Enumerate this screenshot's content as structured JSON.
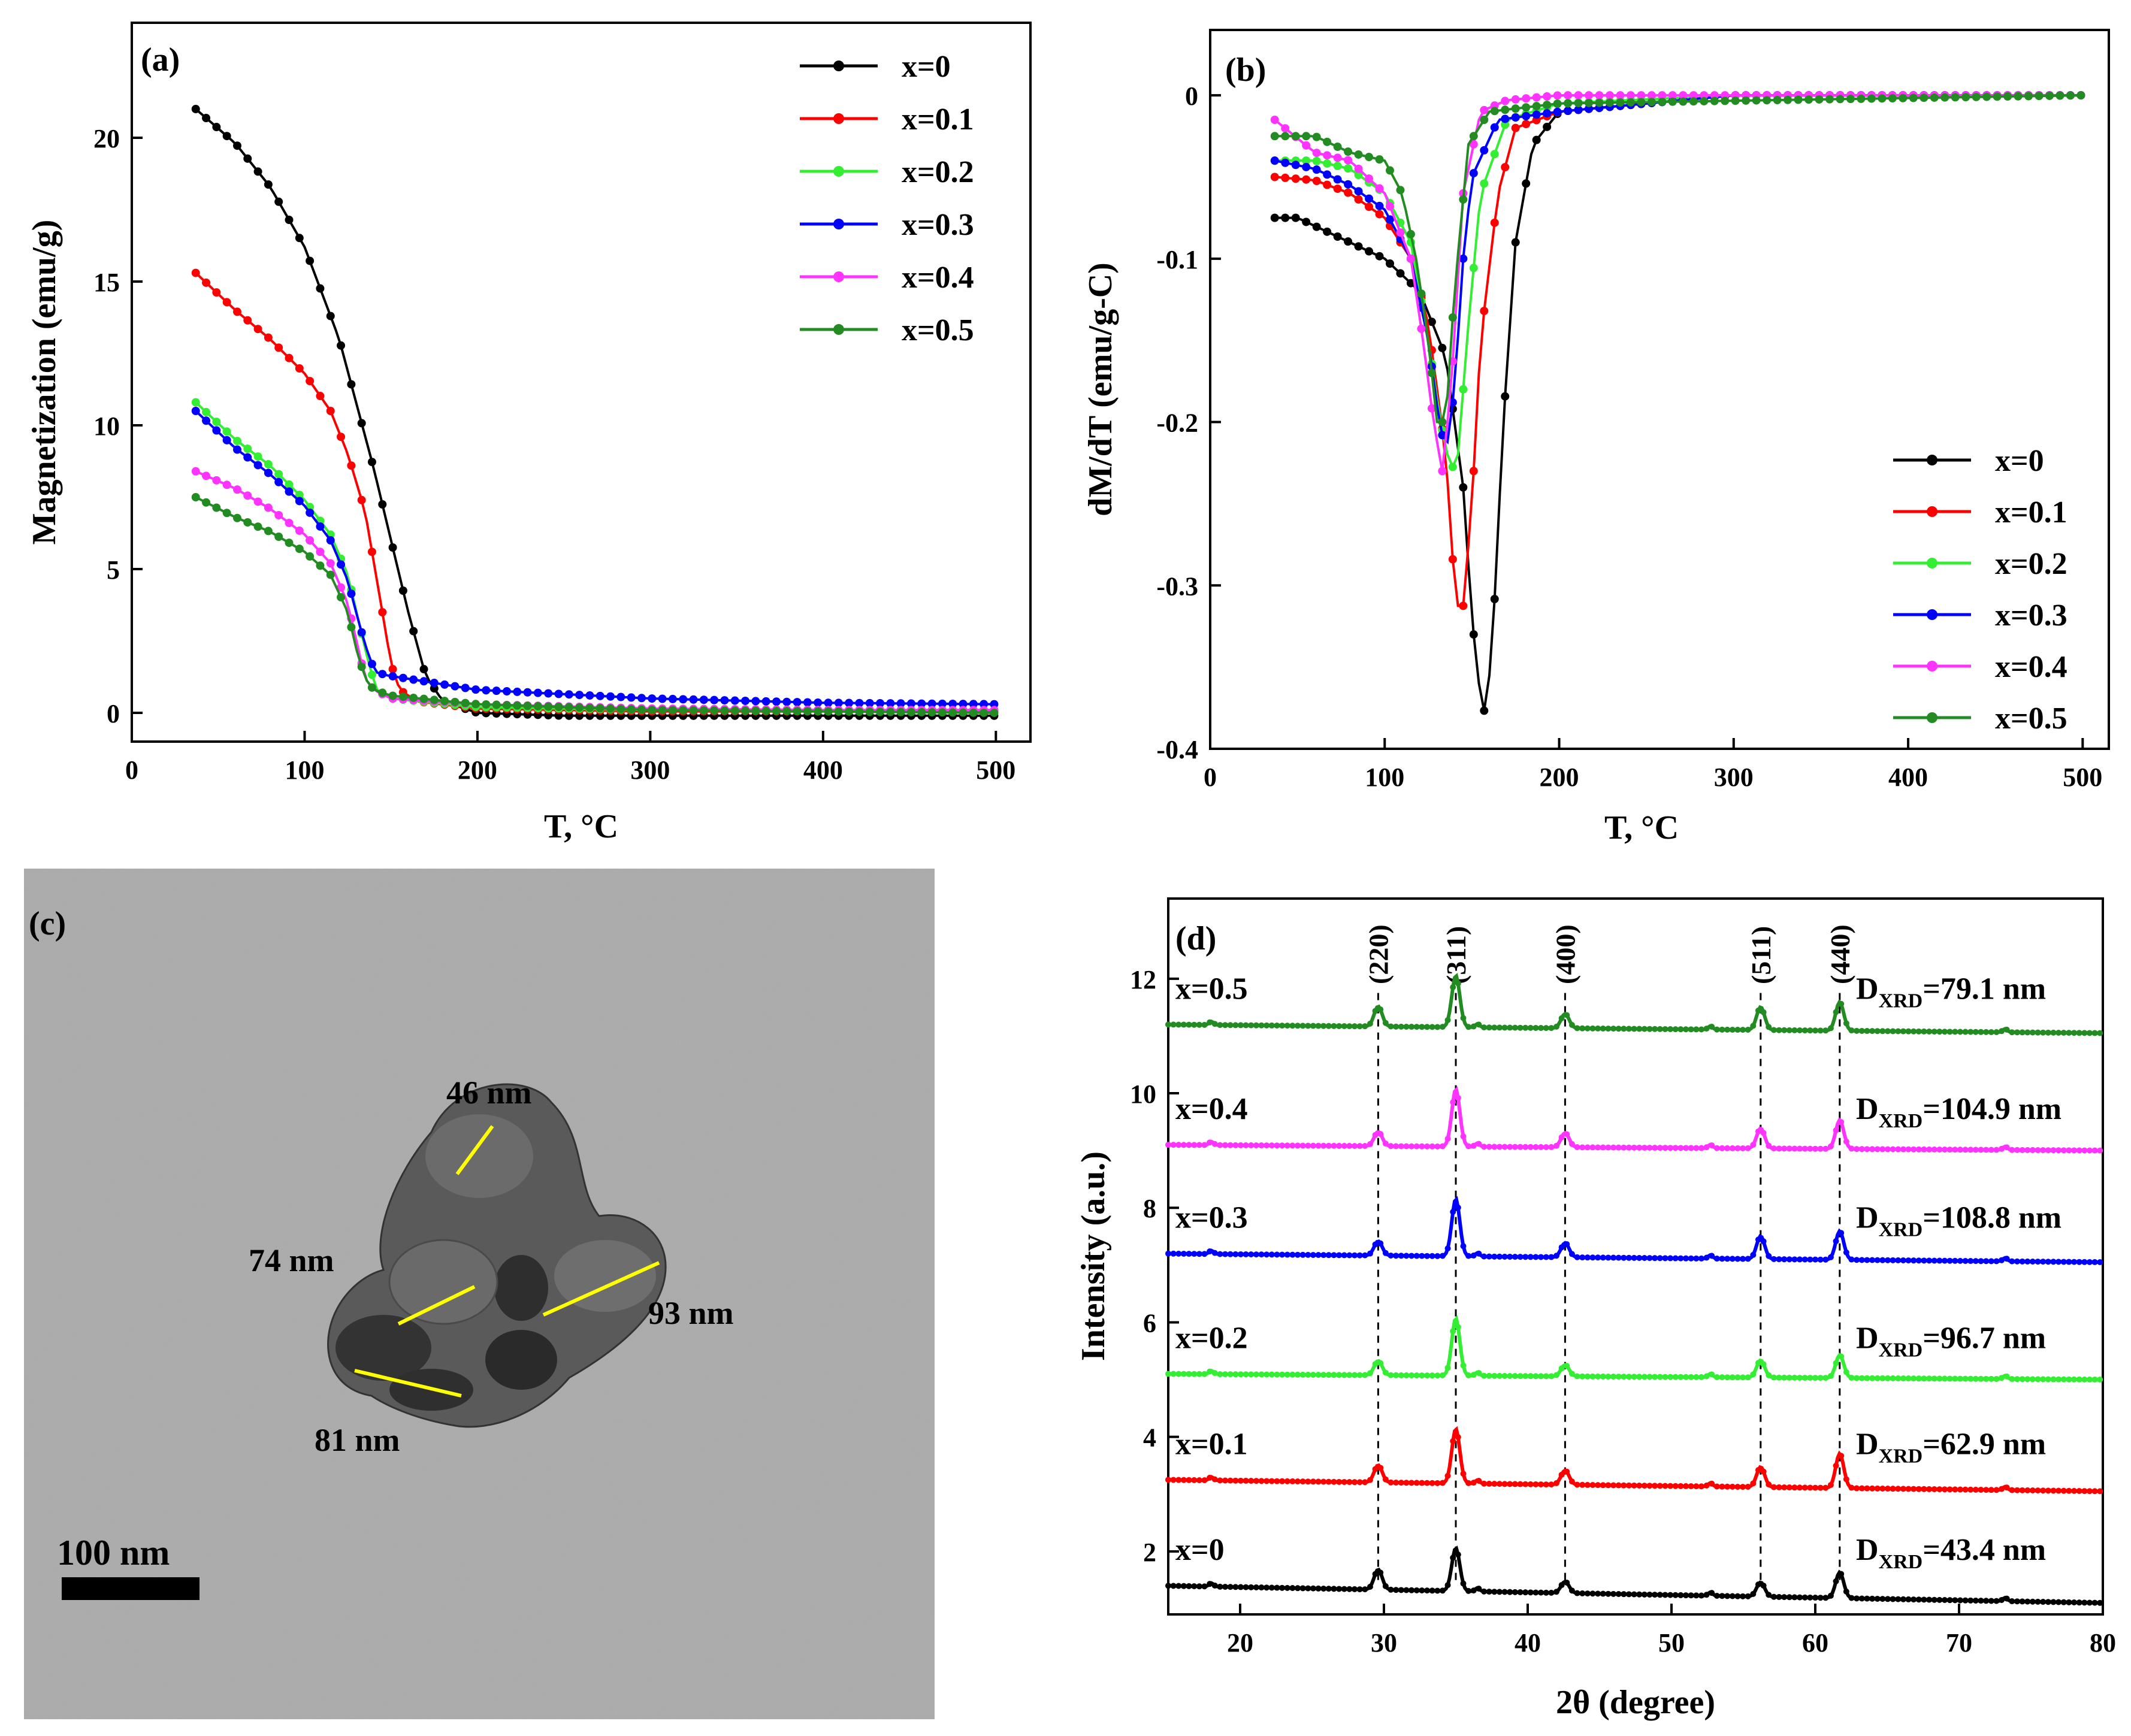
{
  "panels": {
    "a": {
      "label": "(a)"
    },
    "b": {
      "label": "(b)"
    },
    "c": {
      "label": "(c)"
    },
    "d": {
      "label": "(d)"
    }
  },
  "colors": {
    "x0": "#000000",
    "x01": "#ff0000",
    "x02": "#33ee33",
    "x03": "#0000ff",
    "x04": "#ff33ff",
    "x05": "#228b22",
    "tem_bg": "#a7a7a7",
    "tem_particle": "#3a3a3a",
    "size_line": "#ffff00"
  },
  "chart_data": [
    {
      "id": "a",
      "type": "line",
      "title": "",
      "xlabel": "T, °C",
      "ylabel": "Magnetization (emu/g)",
      "xlim": [
        0,
        520
      ],
      "ylim": [
        -1,
        24
      ],
      "xticks": [
        0,
        100,
        200,
        300,
        400,
        500
      ],
      "yticks": [
        0,
        5,
        10,
        15,
        20
      ],
      "legend": "top-right",
      "series": [
        {
          "name": "x=0",
          "color": "#000000",
          "x": [
            37,
            60,
            80,
            100,
            120,
            140,
            150,
            160,
            170,
            180,
            200,
            250,
            300,
            400,
            500
          ],
          "y": [
            21,
            19.8,
            18.3,
            16.2,
            13,
            8.5,
            6,
            3.5,
            1.3,
            0.4,
            0.0,
            -0.1,
            -0.1,
            -0.1,
            -0.1
          ]
        },
        {
          "name": "x=0.1",
          "color": "#ff0000",
          "x": [
            37,
            60,
            80,
            100,
            115,
            125,
            135,
            145,
            150,
            155,
            165,
            200,
            300,
            400,
            500
          ],
          "y": [
            15.3,
            14,
            13,
            11.8,
            10.5,
            9,
            7,
            3.5,
            1.7,
            0.8,
            0.4,
            0.15,
            0.05,
            0.05,
            0.05
          ]
        },
        {
          "name": "x=0.2",
          "color": "#33ee33",
          "x": [
            37,
            60,
            80,
            100,
            115,
            125,
            132,
            138,
            142,
            150,
            200,
            300,
            400,
            500
          ],
          "y": [
            10.8,
            9.5,
            8.6,
            7.4,
            6.2,
            4.8,
            3,
            1.5,
            0.8,
            0.5,
            0.2,
            0.1,
            0.1,
            0.1
          ]
        },
        {
          "name": "x=0.3",
          "color": "#0000ff",
          "x": [
            37,
            60,
            80,
            100,
            115,
            125,
            132,
            138,
            142,
            148,
            200,
            300,
            400,
            500
          ],
          "y": [
            10.5,
            9.2,
            8.3,
            7.2,
            6,
            4.6,
            3,
            1.8,
            1.4,
            1.3,
            0.8,
            0.5,
            0.35,
            0.3
          ]
        },
        {
          "name": "x=0.4",
          "color": "#ff33ff",
          "x": [
            37,
            60,
            80,
            100,
            115,
            125,
            130,
            135,
            140,
            150,
            200,
            300,
            400,
            500
          ],
          "y": [
            8.4,
            7.8,
            7.1,
            6.2,
            5.2,
            3.8,
            2.5,
            1.2,
            0.8,
            0.5,
            0.3,
            0.15,
            0.1,
            0.1
          ]
        },
        {
          "name": "x=0.5",
          "color": "#228b22",
          "x": [
            37,
            60,
            80,
            100,
            115,
            125,
            130,
            135,
            140,
            150,
            200,
            300,
            400,
            500
          ],
          "y": [
            7.5,
            6.8,
            6.3,
            5.6,
            4.8,
            3.5,
            2.2,
            1.2,
            0.8,
            0.6,
            0.3,
            0.1,
            0.05,
            0.0
          ]
        }
      ]
    },
    {
      "id": "b",
      "type": "line",
      "title": "",
      "xlabel": "T, °C",
      "ylabel": "dM/dT (emu/g-C)",
      "xlim": [
        0,
        515
      ],
      "ylim": [
        -0.4,
        0.04
      ],
      "xticks": [
        0,
        100,
        200,
        300,
        400,
        500
      ],
      "yticks": [
        0,
        -0.1,
        -0.2,
        -0.3,
        -0.4
      ],
      "legend": "bottom-right",
      "series": [
        {
          "name": "x=0",
          "color": "#000000",
          "x": [
            37,
            50,
            60,
            80,
            100,
            120,
            135,
            145,
            150,
            155,
            158,
            162,
            168,
            175,
            185,
            200,
            300,
            400,
            500
          ],
          "y": [
            -0.075,
            -0.075,
            -0.08,
            -0.09,
            -0.1,
            -0.12,
            -0.16,
            -0.24,
            -0.32,
            -0.37,
            -0.38,
            -0.33,
            -0.2,
            -0.09,
            -0.03,
            -0.01,
            0,
            0,
            0
          ]
        },
        {
          "name": "x=0.1",
          "color": "#ff0000",
          "x": [
            37,
            60,
            80,
            100,
            115,
            125,
            135,
            140,
            144,
            150,
            155,
            165,
            175,
            200,
            250,
            300,
            500
          ],
          "y": [
            -0.05,
            -0.052,
            -0.06,
            -0.075,
            -0.1,
            -0.14,
            -0.22,
            -0.3,
            -0.325,
            -0.25,
            -0.15,
            -0.06,
            -0.02,
            -0.01,
            -0.005,
            0,
            0
          ]
        },
        {
          "name": "x=0.2",
          "color": "#33ee33",
          "x": [
            37,
            60,
            80,
            100,
            115,
            125,
            132,
            138,
            142,
            148,
            155,
            170,
            200,
            300,
            500
          ],
          "y": [
            -0.04,
            -0.04,
            -0.045,
            -0.06,
            -0.09,
            -0.15,
            -0.2,
            -0.23,
            -0.22,
            -0.14,
            -0.06,
            -0.015,
            -0.005,
            0,
            0
          ]
        },
        {
          "name": "x=0.3",
          "color": "#0000ff",
          "x": [
            37,
            60,
            80,
            100,
            115,
            125,
            130,
            135,
            140,
            145,
            150,
            165,
            200,
            300,
            500
          ],
          "y": [
            -0.04,
            -0.045,
            -0.055,
            -0.07,
            -0.1,
            -0.15,
            -0.19,
            -0.22,
            -0.18,
            -0.1,
            -0.05,
            -0.015,
            -0.01,
            0,
            0
          ]
        },
        {
          "name": "x=0.4",
          "color": "#ff33ff",
          "x": [
            37,
            60,
            80,
            100,
            115,
            122,
            128,
            133,
            138,
            145,
            155,
            170,
            200,
            500
          ],
          "y": [
            -0.015,
            -0.035,
            -0.04,
            -0.06,
            -0.1,
            -0.15,
            -0.2,
            -0.23,
            -0.18,
            -0.06,
            -0.01,
            -0.003,
            0,
            0
          ]
        },
        {
          "name": "x=0.5",
          "color": "#228b22",
          "x": [
            37,
            60,
            80,
            100,
            110,
            118,
            125,
            130,
            135,
            140,
            148,
            160,
            200,
            500
          ],
          "y": [
            -0.025,
            -0.025,
            -0.035,
            -0.04,
            -0.06,
            -0.1,
            -0.15,
            -0.2,
            -0.2,
            -0.12,
            -0.03,
            -0.01,
            -0.005,
            0
          ]
        }
      ]
    },
    {
      "id": "d",
      "type": "line",
      "title": "",
      "xlabel": "2θ (degree)",
      "ylabel": "Intensity (a.u.)",
      "xlim": [
        15,
        80
      ],
      "ylim": [
        0.9,
        13.4
      ],
      "xticks": [
        20,
        30,
        40,
        50,
        60,
        70,
        80
      ],
      "yticks": [
        2,
        4,
        6,
        8,
        10,
        12
      ],
      "peak_labels": [
        {
          "hkl": "(220)",
          "two_theta": 29.6
        },
        {
          "hkl": "(311)",
          "two_theta": 35.0
        },
        {
          "hkl": "(400)",
          "two_theta": 42.6
        },
        {
          "hkl": "(511)",
          "two_theta": 56.2
        },
        {
          "hkl": "(440)",
          "two_theta": 61.7
        }
      ],
      "series": [
        {
          "name": "x=0",
          "label": "x=0",
          "color": "#000000",
          "baseline_start": 1.4,
          "baseline_end": 1.1,
          "peaks": [
            0.35,
            0.75,
            0.2,
            0.25,
            0.45
          ],
          "d_xrd": "43.4"
        },
        {
          "name": "x=0.1",
          "label": "x=0.1",
          "color": "#ff0000",
          "baseline_start": 3.25,
          "baseline_end": 3.05,
          "peaks": [
            0.3,
            0.95,
            0.25,
            0.35,
            0.6
          ],
          "d_xrd": "62.9"
        },
        {
          "name": "x=0.2",
          "label": "x=0.2",
          "color": "#33ee33",
          "baseline_start": 5.1,
          "baseline_end": 5.0,
          "peaks": [
            0.25,
            1.0,
            0.2,
            0.3,
            0.4
          ],
          "d_xrd": "96.7"
        },
        {
          "name": "x=0.3",
          "label": "x=0.3",
          "color": "#0000ff",
          "baseline_start": 7.2,
          "baseline_end": 7.05,
          "peaks": [
            0.25,
            1.0,
            0.25,
            0.4,
            0.5
          ],
          "d_xrd": "108.8"
        },
        {
          "name": "x=0.4",
          "label": "x=0.4",
          "color": "#ff33ff",
          "baseline_start": 9.1,
          "baseline_end": 9.0,
          "peaks": [
            0.25,
            1.0,
            0.25,
            0.35,
            0.5
          ],
          "d_xrd": "104.9"
        },
        {
          "name": "x=0.5",
          "label": "x=0.5",
          "color": "#228b22",
          "baseline_start": 11.2,
          "baseline_end": 11.05,
          "peaks": [
            0.35,
            0.9,
            0.25,
            0.4,
            0.5
          ],
          "d_xrd": "79.1"
        }
      ],
      "dxrd_prefix": "D",
      "dxrd_subscript": "XRD",
      "dxrd_unit": " nm"
    }
  ],
  "tem": {
    "scale_label": "100 nm",
    "sizes": [
      {
        "label": "46 nm"
      },
      {
        "label": "74 nm"
      },
      {
        "label": "93 nm"
      },
      {
        "label": "81 nm"
      }
    ]
  }
}
